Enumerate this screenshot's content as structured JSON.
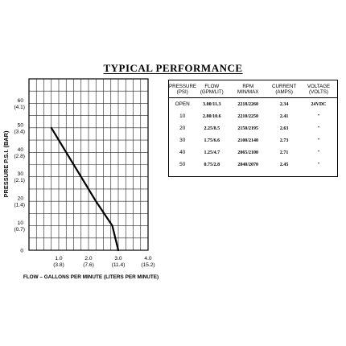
{
  "title": "TYPICAL PERFORMANCE",
  "chart_data": {
    "type": "line",
    "ylabel": "PRESSURE  P.S.I.  (BAR)",
    "xlabel": "FLOW – GALLONS PER MINUTE  (LITERS PER MINUTE)",
    "xlim": [
      0,
      4.0
    ],
    "ylim": [
      0,
      70
    ],
    "grid": true,
    "x_ticks": [
      {
        "value": 1.0,
        "label": "1.0",
        "sub": "(3.8)"
      },
      {
        "value": 2.0,
        "label": "2.0",
        "sub": "(7.6)"
      },
      {
        "value": 3.0,
        "label": "3.0",
        "sub": "(11.4)"
      },
      {
        "value": 4.0,
        "label": "4.0",
        "sub": "(15.2)"
      }
    ],
    "y_ticks": [
      {
        "value": 0,
        "label": "0",
        "sub": ""
      },
      {
        "value": 10,
        "label": "10",
        "sub": "(0.7)"
      },
      {
        "value": 20,
        "label": "20",
        "sub": "(1.4)"
      },
      {
        "value": 30,
        "label": "30",
        "sub": "(2.1)"
      },
      {
        "value": 40,
        "label": "40",
        "sub": "(2.8)"
      },
      {
        "value": 50,
        "label": "50",
        "sub": "(3.4)"
      },
      {
        "value": 60,
        "label": "60",
        "sub": "(4.1)"
      }
    ],
    "series": [
      {
        "points": [
          [
            3.0,
            0
          ],
          [
            2.8,
            10
          ],
          [
            2.25,
            20
          ],
          [
            1.75,
            30
          ],
          [
            1.25,
            40
          ],
          [
            0.75,
            50
          ]
        ]
      }
    ]
  },
  "table": {
    "headers": [
      {
        "l1": "PRESSURE",
        "l2": "(PSI)"
      },
      {
        "l1": "FLOW",
        "l2": "(GPM/LIT)"
      },
      {
        "l1": "RPM",
        "l2": "MIN/MAX"
      },
      {
        "l1": "CURRENT",
        "l2": "(AMPS)"
      },
      {
        "l1": "VOLTAGE",
        "l2": "(VOLTS)"
      }
    ],
    "rows": [
      [
        "OPEN",
        "3.00/11.3",
        "2218/2260",
        "2.34",
        "24VDC"
      ],
      [
        "10",
        "2.80/10.6",
        "2210/2250",
        "2.41",
        "\""
      ],
      [
        "20",
        "2.25/8.5",
        "2150/2195",
        "2.63",
        "\""
      ],
      [
        "30",
        "1.75/6.6",
        "2100/2140",
        "2.73",
        "\""
      ],
      [
        "40",
        "1.25/4.7",
        "2065/2100",
        "2.71",
        "\""
      ],
      [
        "50",
        "0.75/2.8",
        "2040/2070",
        "2.45",
        "\""
      ]
    ]
  }
}
